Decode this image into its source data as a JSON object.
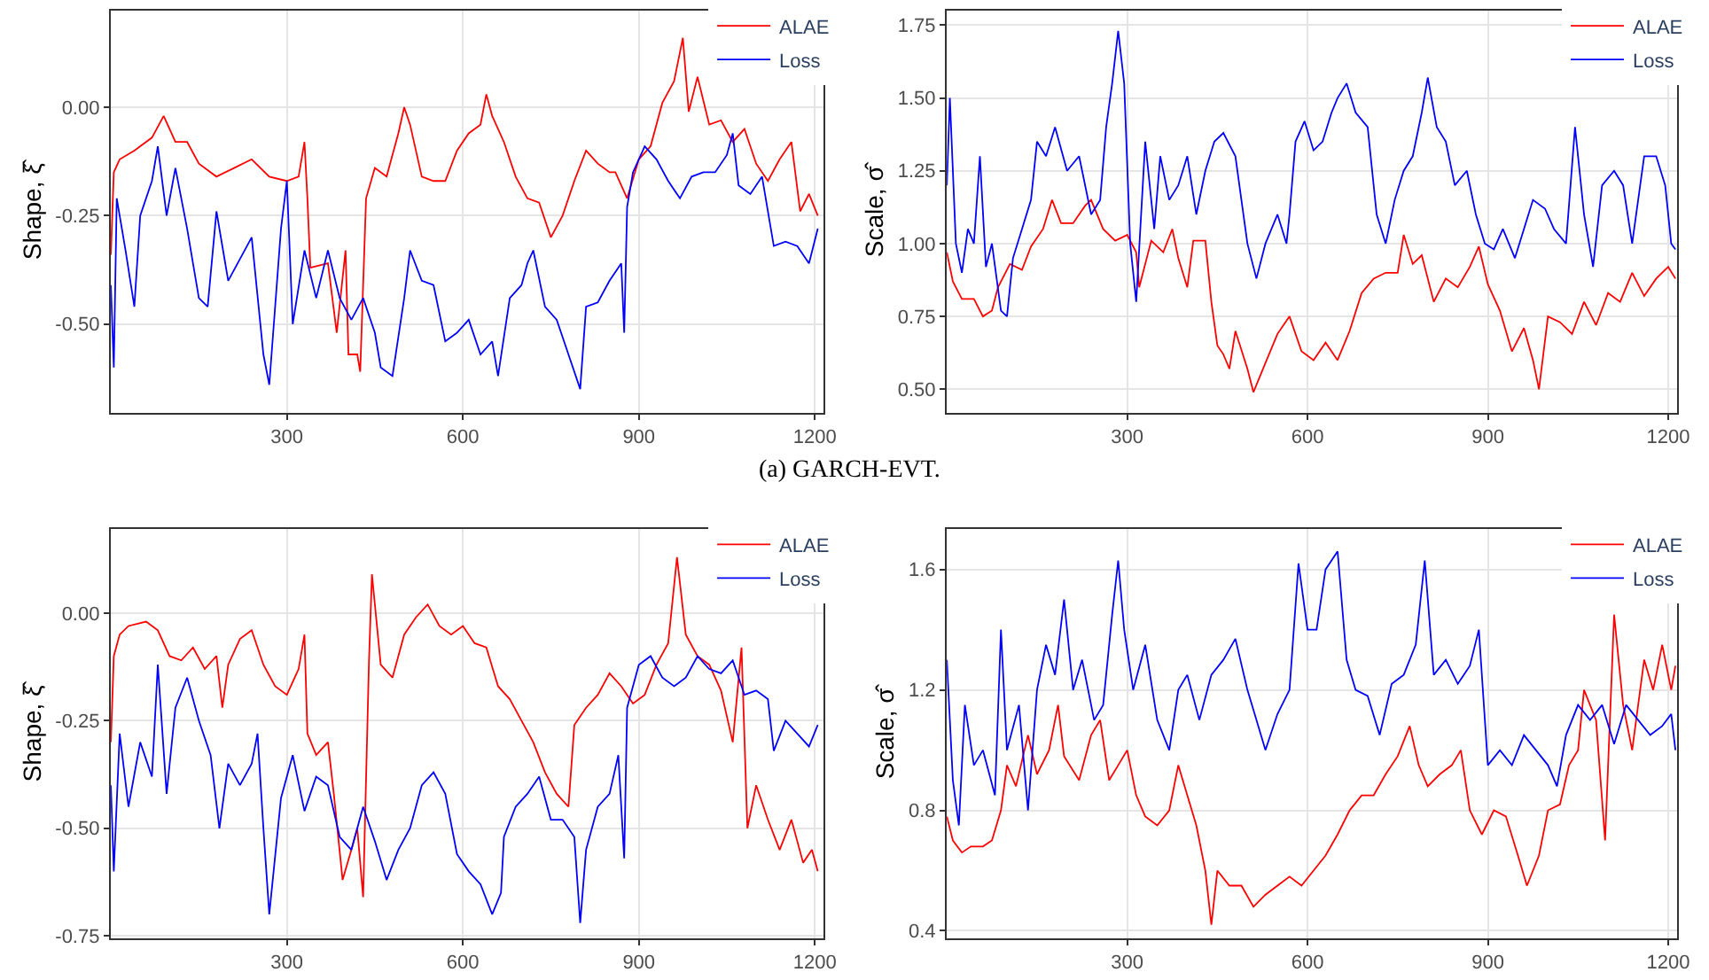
{
  "chart_data": [
    {
      "type": "line",
      "ylabel": "Shape, ξ̂",
      "xlim": [
        0,
        1215
      ],
      "ylim": [
        -0.704,
        0.223
      ],
      "xticks": [
        300,
        600,
        900,
        1200
      ],
      "yticks": [
        {
          "value": 0,
          "label": "0.00"
        },
        {
          "value": -0.25,
          "label": "-0.25"
        },
        {
          "value": -0.5,
          "label": "-0.50"
        }
      ],
      "grid": true,
      "legend": "top right",
      "annotations": [
        "(a) GARCH-EVT."
      ],
      "series": [
        {
          "name": "ALAE",
          "color": "#ff0000",
          "x": [
            0,
            5,
            15,
            40,
            70,
            90,
            110,
            130,
            150,
            180,
            210,
            240,
            270,
            300,
            320,
            330,
            335,
            340,
            370,
            385,
            400,
            405,
            420,
            425,
            435,
            450,
            470,
            490,
            500,
            510,
            530,
            550,
            570,
            590,
            610,
            630,
            640,
            650,
            670,
            690,
            710,
            730,
            750,
            770,
            790,
            810,
            830,
            850,
            860,
            880,
            900,
            920,
            940,
            960,
            975,
            985,
            1000,
            1020,
            1040,
            1060,
            1080,
            1100,
            1120,
            1140,
            1160,
            1175,
            1190,
            1205
          ],
          "values": [
            -0.34,
            -0.15,
            -0.12,
            -0.1,
            -0.07,
            -0.02,
            -0.08,
            -0.08,
            -0.13,
            -0.16,
            -0.14,
            -0.12,
            -0.16,
            -0.17,
            -0.16,
            -0.08,
            -0.21,
            -0.37,
            -0.36,
            -0.52,
            -0.33,
            -0.57,
            -0.57,
            -0.61,
            -0.21,
            -0.14,
            -0.16,
            -0.06,
            0.0,
            -0.04,
            -0.16,
            -0.17,
            -0.17,
            -0.1,
            -0.06,
            -0.04,
            0.03,
            -0.02,
            -0.08,
            -0.16,
            -0.21,
            -0.22,
            -0.3,
            -0.25,
            -0.17,
            -0.1,
            -0.13,
            -0.15,
            -0.15,
            -0.21,
            -0.12,
            -0.09,
            0.01,
            0.06,
            0.16,
            -0.01,
            0.07,
            -0.04,
            -0.03,
            -0.08,
            -0.05,
            -0.13,
            -0.17,
            -0.12,
            -0.08,
            -0.24,
            -0.2,
            -0.25
          ]
        },
        {
          "name": "Loss",
          "color": "#0000ff",
          "x": [
            0,
            5,
            10,
            25,
            40,
            50,
            70,
            80,
            95,
            110,
            130,
            150,
            165,
            180,
            200,
            220,
            240,
            260,
            270,
            290,
            300,
            310,
            330,
            350,
            370,
            390,
            410,
            430,
            450,
            460,
            480,
            500,
            510,
            530,
            550,
            570,
            590,
            610,
            630,
            650,
            660,
            680,
            700,
            710,
            720,
            740,
            760,
            780,
            800,
            810,
            830,
            850,
            870,
            875,
            880,
            890,
            910,
            930,
            950,
            970,
            990,
            1010,
            1030,
            1050,
            1060,
            1070,
            1090,
            1110,
            1130,
            1150,
            1170,
            1190,
            1205
          ],
          "values": [
            -0.41,
            -0.6,
            -0.21,
            -0.33,
            -0.46,
            -0.25,
            -0.17,
            -0.09,
            -0.25,
            -0.14,
            -0.28,
            -0.44,
            -0.46,
            -0.24,
            -0.4,
            -0.35,
            -0.3,
            -0.57,
            -0.64,
            -0.28,
            -0.17,
            -0.5,
            -0.33,
            -0.44,
            -0.33,
            -0.44,
            -0.49,
            -0.44,
            -0.52,
            -0.6,
            -0.62,
            -0.44,
            -0.33,
            -0.4,
            -0.41,
            -0.54,
            -0.52,
            -0.49,
            -0.57,
            -0.54,
            -0.62,
            -0.44,
            -0.41,
            -0.36,
            -0.33,
            -0.46,
            -0.49,
            -0.57,
            -0.65,
            -0.46,
            -0.45,
            -0.4,
            -0.36,
            -0.52,
            -0.23,
            -0.15,
            -0.09,
            -0.12,
            -0.17,
            -0.21,
            -0.16,
            -0.15,
            -0.15,
            -0.11,
            -0.06,
            -0.18,
            -0.2,
            -0.16,
            -0.32,
            -0.31,
            -0.32,
            -0.36,
            -0.28
          ]
        }
      ]
    },
    {
      "type": "line",
      "ylabel": "Scale, σ̂",
      "xlim": [
        0,
        1215
      ],
      "ylim": [
        0.42,
        1.8
      ],
      "xticks": [
        300,
        600,
        900,
        1200
      ],
      "yticks": [
        {
          "value": 0.5,
          "label": "0.50"
        },
        {
          "value": 0.75,
          "label": "0.75"
        },
        {
          "value": 1,
          "label": "1.00"
        },
        {
          "value": 1.25,
          "label": "1.25"
        },
        {
          "value": 1.5,
          "label": "1.50"
        },
        {
          "value": 1.75,
          "label": "1.75"
        }
      ],
      "grid": true,
      "legend": "top right",
      "series": [
        {
          "name": "ALAE",
          "color": "#ff0000",
          "x": [
            0,
            10,
            25,
            45,
            60,
            75,
            85,
            105,
            125,
            140,
            160,
            175,
            190,
            210,
            230,
            240,
            260,
            280,
            300,
            315,
            320,
            340,
            360,
            375,
            385,
            400,
            410,
            430,
            440,
            450,
            460,
            470,
            480,
            500,
            510,
            530,
            550,
            570,
            590,
            610,
            630,
            650,
            670,
            690,
            710,
            730,
            750,
            760,
            775,
            790,
            810,
            830,
            850,
            870,
            885,
            900,
            920,
            940,
            960,
            975,
            985,
            1000,
            1020,
            1040,
            1060,
            1080,
            1100,
            1120,
            1140,
            1160,
            1180,
            1200,
            1212
          ],
          "values": [
            0.97,
            0.87,
            0.81,
            0.81,
            0.75,
            0.77,
            0.85,
            0.93,
            0.91,
            0.99,
            1.05,
            1.15,
            1.07,
            1.07,
            1.13,
            1.15,
            1.05,
            1.01,
            1.03,
            0.97,
            0.85,
            1.01,
            0.97,
            1.05,
            0.95,
            0.85,
            1.01,
            1.01,
            0.8,
            0.65,
            0.62,
            0.57,
            0.7,
            0.57,
            0.49,
            0.59,
            0.69,
            0.75,
            0.63,
            0.6,
            0.66,
            0.6,
            0.7,
            0.83,
            0.88,
            0.9,
            0.9,
            1.03,
            0.93,
            0.96,
            0.8,
            0.88,
            0.85,
            0.92,
            0.99,
            0.86,
            0.77,
            0.63,
            0.71,
            0.6,
            0.5,
            0.75,
            0.73,
            0.69,
            0.8,
            0.72,
            0.83,
            0.8,
            0.9,
            0.82,
            0.88,
            0.92,
            0.88
          ]
        },
        {
          "name": "Loss",
          "color": "#0000ff",
          "x": [
            0,
            5,
            15,
            25,
            35,
            45,
            55,
            65,
            75,
            90,
            100,
            110,
            125,
            140,
            150,
            165,
            180,
            200,
            220,
            240,
            255,
            265,
            275,
            285,
            295,
            305,
            315,
            330,
            345,
            355,
            370,
            385,
            400,
            415,
            430,
            445,
            460,
            480,
            500,
            515,
            530,
            550,
            565,
            570,
            580,
            595,
            610,
            625,
            640,
            650,
            665,
            680,
            700,
            715,
            730,
            745,
            760,
            775,
            790,
            800,
            815,
            830,
            845,
            865,
            880,
            895,
            910,
            925,
            945,
            960,
            975,
            995,
            1010,
            1030,
            1045,
            1060,
            1075,
            1090,
            1110,
            1125,
            1140,
            1160,
            1180,
            1195,
            1205,
            1212
          ],
          "values": [
            1.2,
            1.5,
            1.0,
            0.9,
            1.05,
            1.0,
            1.3,
            0.92,
            1.0,
            0.77,
            0.75,
            0.95,
            1.05,
            1.15,
            1.35,
            1.3,
            1.4,
            1.25,
            1.3,
            1.1,
            1.15,
            1.4,
            1.55,
            1.73,
            1.55,
            1.0,
            0.8,
            1.35,
            1.05,
            1.3,
            1.15,
            1.2,
            1.3,
            1.1,
            1.25,
            1.35,
            1.38,
            1.3,
            1.0,
            0.88,
            1.0,
            1.1,
            1.0,
            1.1,
            1.35,
            1.42,
            1.32,
            1.35,
            1.45,
            1.5,
            1.55,
            1.45,
            1.4,
            1.1,
            1.0,
            1.15,
            1.25,
            1.3,
            1.45,
            1.57,
            1.4,
            1.35,
            1.2,
            1.25,
            1.1,
            1.0,
            0.98,
            1.05,
            0.95,
            1.05,
            1.15,
            1.12,
            1.05,
            1.0,
            1.4,
            1.1,
            0.92,
            1.2,
            1.25,
            1.2,
            1.0,
            1.3,
            1.3,
            1.2,
            1.0,
            0.98
          ]
        }
      ]
    },
    {
      "type": "line",
      "ylabel": "Shape, ξ̂",
      "xlim": [
        0,
        1215
      ],
      "ylim": [
        -0.755,
        0.195
      ],
      "xticks": [
        300,
        600,
        900,
        1200
      ],
      "yticks": [
        {
          "value": 0,
          "label": "0.00"
        },
        {
          "value": -0.25,
          "label": "-0.25"
        },
        {
          "value": -0.5,
          "label": "-0.50"
        },
        {
          "value": -0.75,
          "label": "-0.75"
        }
      ],
      "grid": true,
      "legend": "top right",
      "series": [
        {
          "name": "ALAE",
          "color": "#ff0000",
          "x": [
            0,
            5,
            15,
            30,
            60,
            80,
            100,
            120,
            140,
            160,
            180,
            190,
            200,
            220,
            240,
            260,
            280,
            300,
            320,
            330,
            335,
            350,
            370,
            380,
            395,
            410,
            420,
            430,
            440,
            445,
            460,
            480,
            500,
            520,
            540,
            560,
            580,
            600,
            620,
            640,
            660,
            680,
            700,
            720,
            740,
            760,
            780,
            790,
            810,
            830,
            850,
            870,
            890,
            910,
            930,
            950,
            965,
            980,
            1000,
            1020,
            1040,
            1060,
            1075,
            1085,
            1100,
            1120,
            1140,
            1160,
            1180,
            1195,
            1205
          ],
          "values": [
            -0.3,
            -0.1,
            -0.05,
            -0.03,
            -0.02,
            -0.04,
            -0.1,
            -0.11,
            -0.08,
            -0.13,
            -0.1,
            -0.22,
            -0.12,
            -0.06,
            -0.04,
            -0.12,
            -0.17,
            -0.19,
            -0.13,
            -0.05,
            -0.28,
            -0.33,
            -0.3,
            -0.42,
            -0.62,
            -0.55,
            -0.5,
            -0.66,
            -0.11,
            0.09,
            -0.12,
            -0.15,
            -0.05,
            -0.01,
            0.02,
            -0.03,
            -0.05,
            -0.03,
            -0.07,
            -0.08,
            -0.17,
            -0.2,
            -0.25,
            -0.3,
            -0.37,
            -0.42,
            -0.45,
            -0.26,
            -0.22,
            -0.19,
            -0.14,
            -0.17,
            -0.21,
            -0.19,
            -0.12,
            -0.07,
            0.13,
            -0.05,
            -0.1,
            -0.12,
            -0.18,
            -0.3,
            -0.08,
            -0.5,
            -0.4,
            -0.48,
            -0.55,
            -0.48,
            -0.58,
            -0.55,
            -0.6
          ]
        },
        {
          "name": "Loss",
          "color": "#0000ff",
          "x": [
            0,
            5,
            15,
            30,
            50,
            70,
            80,
            95,
            110,
            130,
            150,
            170,
            185,
            200,
            220,
            240,
            250,
            260,
            270,
            290,
            310,
            330,
            350,
            370,
            390,
            410,
            430,
            450,
            470,
            490,
            510,
            530,
            550,
            570,
            590,
            610,
            630,
            650,
            665,
            670,
            690,
            710,
            730,
            750,
            770,
            790,
            800,
            810,
            830,
            850,
            865,
            875,
            880,
            900,
            920,
            940,
            960,
            980,
            1000,
            1020,
            1040,
            1060,
            1080,
            1100,
            1120,
            1130,
            1150,
            1170,
            1190,
            1205
          ],
          "values": [
            -0.4,
            -0.6,
            -0.28,
            -0.45,
            -0.3,
            -0.38,
            -0.12,
            -0.42,
            -0.22,
            -0.15,
            -0.25,
            -0.33,
            -0.5,
            -0.35,
            -0.4,
            -0.35,
            -0.28,
            -0.5,
            -0.7,
            -0.43,
            -0.33,
            -0.46,
            -0.38,
            -0.4,
            -0.52,
            -0.55,
            -0.45,
            -0.53,
            -0.62,
            -0.55,
            -0.5,
            -0.4,
            -0.37,
            -0.42,
            -0.56,
            -0.6,
            -0.63,
            -0.7,
            -0.65,
            -0.52,
            -0.45,
            -0.42,
            -0.38,
            -0.48,
            -0.48,
            -0.52,
            -0.72,
            -0.55,
            -0.45,
            -0.42,
            -0.33,
            -0.57,
            -0.22,
            -0.12,
            -0.1,
            -0.15,
            -0.17,
            -0.15,
            -0.1,
            -0.13,
            -0.14,
            -0.11,
            -0.19,
            -0.18,
            -0.2,
            -0.32,
            -0.25,
            -0.28,
            -0.31,
            -0.26
          ]
        }
      ]
    },
    {
      "type": "line",
      "ylabel": "Scale, σ̂",
      "xlim": [
        0,
        1215
      ],
      "ylim": [
        0.376,
        1.734
      ],
      "xticks": [
        300,
        600,
        900,
        1200
      ],
      "yticks": [
        0.4,
        0.8,
        1.2,
        1.6
      ],
      "grid": true,
      "legend": "top right",
      "series": [
        {
          "name": "ALAE",
          "color": "#ff0000",
          "x": [
            0,
            10,
            25,
            40,
            60,
            75,
            90,
            100,
            115,
            135,
            150,
            170,
            185,
            195,
            220,
            240,
            255,
            270,
            285,
            300,
            315,
            330,
            350,
            370,
            385,
            400,
            415,
            430,
            440,
            450,
            470,
            490,
            510,
            530,
            550,
            570,
            590,
            610,
            630,
            650,
            670,
            690,
            710,
            730,
            750,
            770,
            785,
            800,
            820,
            840,
            855,
            870,
            890,
            910,
            930,
            950,
            965,
            985,
            1000,
            1020,
            1035,
            1050,
            1060,
            1080,
            1095,
            1110,
            1125,
            1140,
            1160,
            1175,
            1190,
            1205,
            1212
          ],
          "values": [
            0.78,
            0.7,
            0.66,
            0.68,
            0.68,
            0.7,
            0.8,
            0.95,
            0.88,
            1.05,
            0.92,
            1.0,
            1.15,
            0.98,
            0.9,
            1.05,
            1.1,
            0.9,
            0.95,
            1.0,
            0.85,
            0.78,
            0.75,
            0.8,
            0.95,
            0.85,
            0.75,
            0.6,
            0.42,
            0.6,
            0.55,
            0.55,
            0.48,
            0.52,
            0.55,
            0.58,
            0.55,
            0.6,
            0.65,
            0.72,
            0.8,
            0.85,
            0.85,
            0.92,
            0.98,
            1.08,
            0.95,
            0.88,
            0.92,
            0.95,
            1.0,
            0.8,
            0.72,
            0.8,
            0.78,
            0.65,
            0.55,
            0.65,
            0.8,
            0.82,
            0.95,
            1.0,
            1.2,
            1.1,
            0.7,
            1.45,
            1.15,
            1.0,
            1.3,
            1.2,
            1.35,
            1.2,
            1.28
          ]
        },
        {
          "name": "Loss",
          "color": "#0000ff",
          "x": [
            0,
            10,
            20,
            30,
            45,
            60,
            80,
            90,
            100,
            120,
            135,
            150,
            165,
            180,
            195,
            210,
            225,
            245,
            260,
            275,
            285,
            295,
            310,
            330,
            350,
            370,
            385,
            400,
            420,
            440,
            460,
            480,
            500,
            515,
            530,
            550,
            570,
            585,
            600,
            615,
            630,
            650,
            665,
            680,
            700,
            720,
            740,
            760,
            780,
            795,
            810,
            830,
            850,
            870,
            885,
            900,
            920,
            940,
            960,
            980,
            1000,
            1015,
            1030,
            1050,
            1070,
            1090,
            1110,
            1130,
            1150,
            1170,
            1190,
            1205,
            1212
          ],
          "values": [
            1.3,
            0.9,
            0.75,
            1.15,
            0.95,
            1.0,
            0.85,
            1.4,
            1.0,
            1.15,
            0.8,
            1.2,
            1.35,
            1.25,
            1.5,
            1.2,
            1.3,
            1.1,
            1.15,
            1.45,
            1.63,
            1.4,
            1.2,
            1.35,
            1.1,
            1.0,
            1.2,
            1.25,
            1.1,
            1.25,
            1.3,
            1.37,
            1.2,
            1.1,
            1.0,
            1.12,
            1.2,
            1.62,
            1.4,
            1.4,
            1.6,
            1.66,
            1.3,
            1.2,
            1.18,
            1.05,
            1.22,
            1.25,
            1.35,
            1.63,
            1.25,
            1.3,
            1.22,
            1.28,
            1.4,
            0.95,
            1.0,
            0.95,
            1.05,
            1.0,
            0.95,
            0.88,
            1.05,
            1.15,
            1.1,
            1.15,
            1.02,
            1.15,
            1.1,
            1.05,
            1.08,
            1.12,
            1.0
          ]
        }
      ]
    }
  ]
}
